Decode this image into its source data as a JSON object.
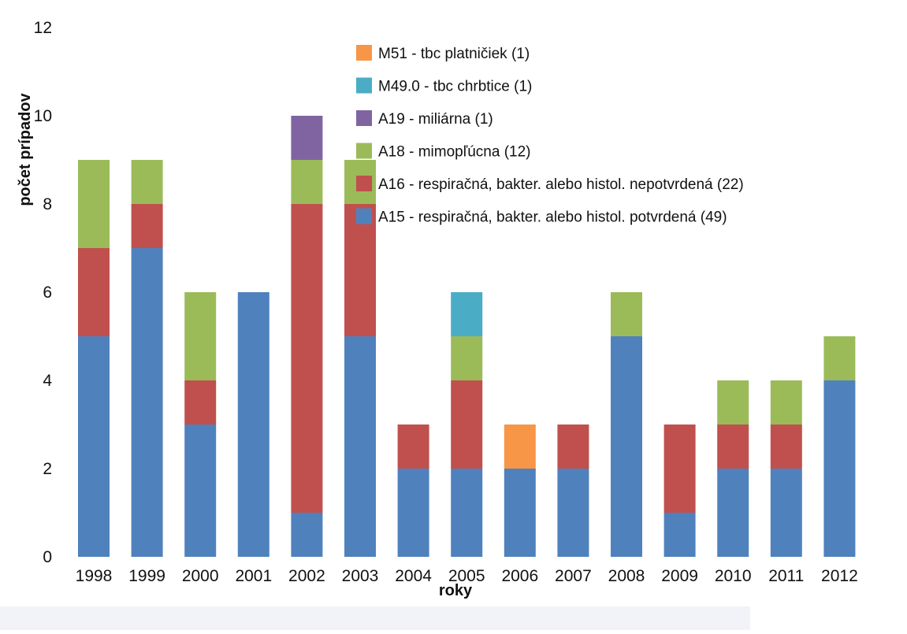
{
  "chart_data": {
    "type": "bar",
    "stacked": true,
    "title": "",
    "xlabel": "roky",
    "ylabel": "počet prípadov",
    "ylim": [
      0,
      12
    ],
    "yticks": [
      0,
      2,
      4,
      6,
      8,
      10,
      12
    ],
    "grid": false,
    "legend_position": "top-right",
    "categories": [
      "1998",
      "1999",
      "2000",
      "2001",
      "2002",
      "2003",
      "2004",
      "2005",
      "2006",
      "2007",
      "2008",
      "2009",
      "2010",
      "2011",
      "2012"
    ],
    "series": [
      {
        "name": "A15 - respiračná, bakter. alebo histol. potvrdená (49)",
        "color": "#4f81bd",
        "values": [
          5,
          7,
          3,
          6,
          1,
          5,
          2,
          2,
          2,
          2,
          5,
          1,
          2,
          2,
          4
        ]
      },
      {
        "name": "A16 - respiračná, bakter. alebo histol. nepotvrdená (22)",
        "color": "#c0504d",
        "values": [
          2,
          1,
          1,
          0,
          7,
          3,
          1,
          2,
          0,
          1,
          0,
          2,
          1,
          1,
          0
        ]
      },
      {
        "name": "A18 - mimopľúcna (12)",
        "color": "#9bbb59",
        "values": [
          2,
          1,
          2,
          0,
          1,
          1,
          0,
          1,
          0,
          0,
          1,
          0,
          1,
          1,
          1
        ]
      },
      {
        "name": "A19 - miliárna (1)",
        "color": "#8064a2",
        "values": [
          0,
          0,
          0,
          0,
          1,
          0,
          0,
          0,
          0,
          0,
          0,
          0,
          0,
          0,
          0
        ]
      },
      {
        "name": "M49.0 - tbc chrbtice (1)",
        "color": "#4bacc6",
        "values": [
          0,
          0,
          0,
          0,
          0,
          0,
          0,
          1,
          0,
          0,
          0,
          0,
          0,
          0,
          0
        ]
      },
      {
        "name": "M51 - tbc platničiek (1)",
        "color": "#f79646",
        "values": [
          0,
          0,
          0,
          0,
          0,
          0,
          0,
          0,
          1,
          0,
          0,
          0,
          0,
          0,
          0
        ]
      }
    ]
  }
}
